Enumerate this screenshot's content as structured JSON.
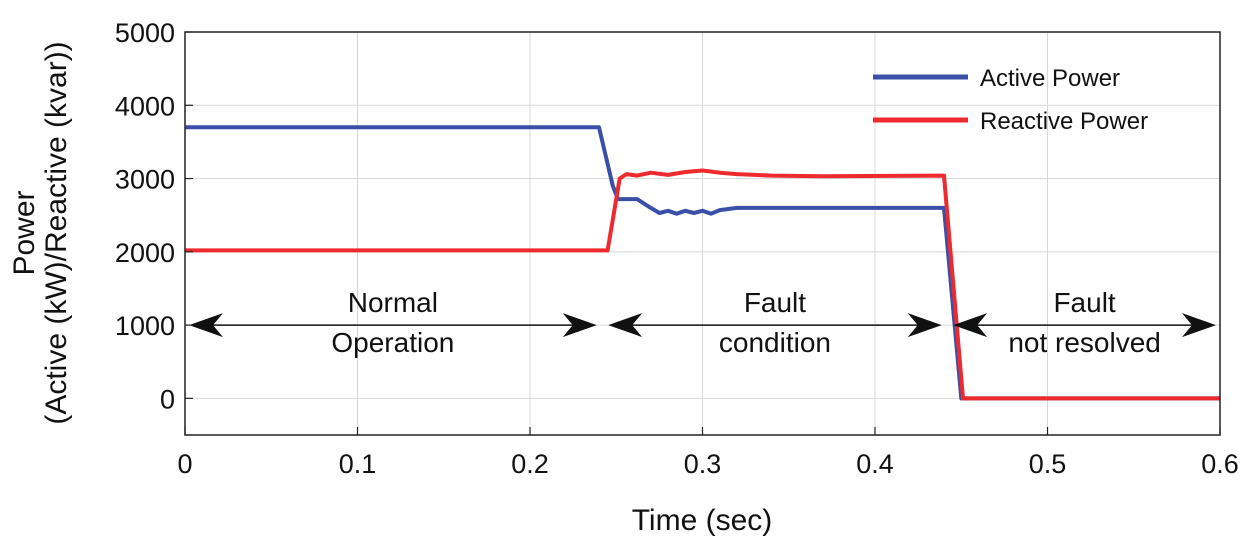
{
  "chart_data": {
    "type": "line",
    "title": "",
    "xlabel": "Time (sec)",
    "ylabel_line1": "Power",
    "ylabel_line2": "(Active (kW)/Reactive (kvar))",
    "xlim": [
      0,
      0.6
    ],
    "ylim": [
      -500,
      5000
    ],
    "xticks": [
      0,
      0.1,
      0.2,
      0.3,
      0.4,
      0.5,
      0.6
    ],
    "xtick_labels": [
      "0",
      "0.1",
      "0.2",
      "0.3",
      "0.4",
      "0.5",
      "0.6"
    ],
    "yticks": [
      0,
      1000,
      2000,
      3000,
      4000,
      5000
    ],
    "ytick_labels": [
      "0",
      "1000",
      "2000",
      "3000",
      "4000",
      "5000"
    ],
    "grid": true,
    "legend_position": "top-right",
    "series": [
      {
        "name": "Active Power",
        "color": "#3a4fa8",
        "points": [
          [
            0,
            3700
          ],
          [
            0.24,
            3700
          ],
          [
            0.248,
            2900
          ],
          [
            0.251,
            2720
          ],
          [
            0.262,
            2720
          ],
          [
            0.27,
            2600
          ],
          [
            0.275,
            2530
          ],
          [
            0.28,
            2560
          ],
          [
            0.285,
            2520
          ],
          [
            0.29,
            2560
          ],
          [
            0.295,
            2530
          ],
          [
            0.3,
            2560
          ],
          [
            0.305,
            2520
          ],
          [
            0.31,
            2570
          ],
          [
            0.32,
            2600
          ],
          [
            0.44,
            2600
          ],
          [
            0.45,
            0
          ],
          [
            0.6,
            0
          ]
        ]
      },
      {
        "name": "Reactive Power",
        "color": "#ee2a2e",
        "points": [
          [
            0,
            2020
          ],
          [
            0.245,
            2020
          ],
          [
            0.252,
            3000
          ],
          [
            0.256,
            3060
          ],
          [
            0.262,
            3040
          ],
          [
            0.27,
            3080
          ],
          [
            0.28,
            3050
          ],
          [
            0.29,
            3090
          ],
          [
            0.3,
            3110
          ],
          [
            0.31,
            3080
          ],
          [
            0.32,
            3060
          ],
          [
            0.34,
            3040
          ],
          [
            0.37,
            3030
          ],
          [
            0.44,
            3040
          ],
          [
            0.451,
            0
          ],
          [
            0.6,
            0
          ]
        ]
      }
    ],
    "annotations": [
      {
        "lines": [
          "Normal",
          "Operation"
        ],
        "range": [
          0,
          0.241
        ],
        "y": 1000
      },
      {
        "lines": [
          "Fault",
          "condition"
        ],
        "range": [
          0.243,
          0.441
        ],
        "y": 1000
      },
      {
        "lines": [
          "Fault",
          "not resolved"
        ],
        "range": [
          0.443,
          0.6
        ],
        "y": 1000
      }
    ]
  }
}
